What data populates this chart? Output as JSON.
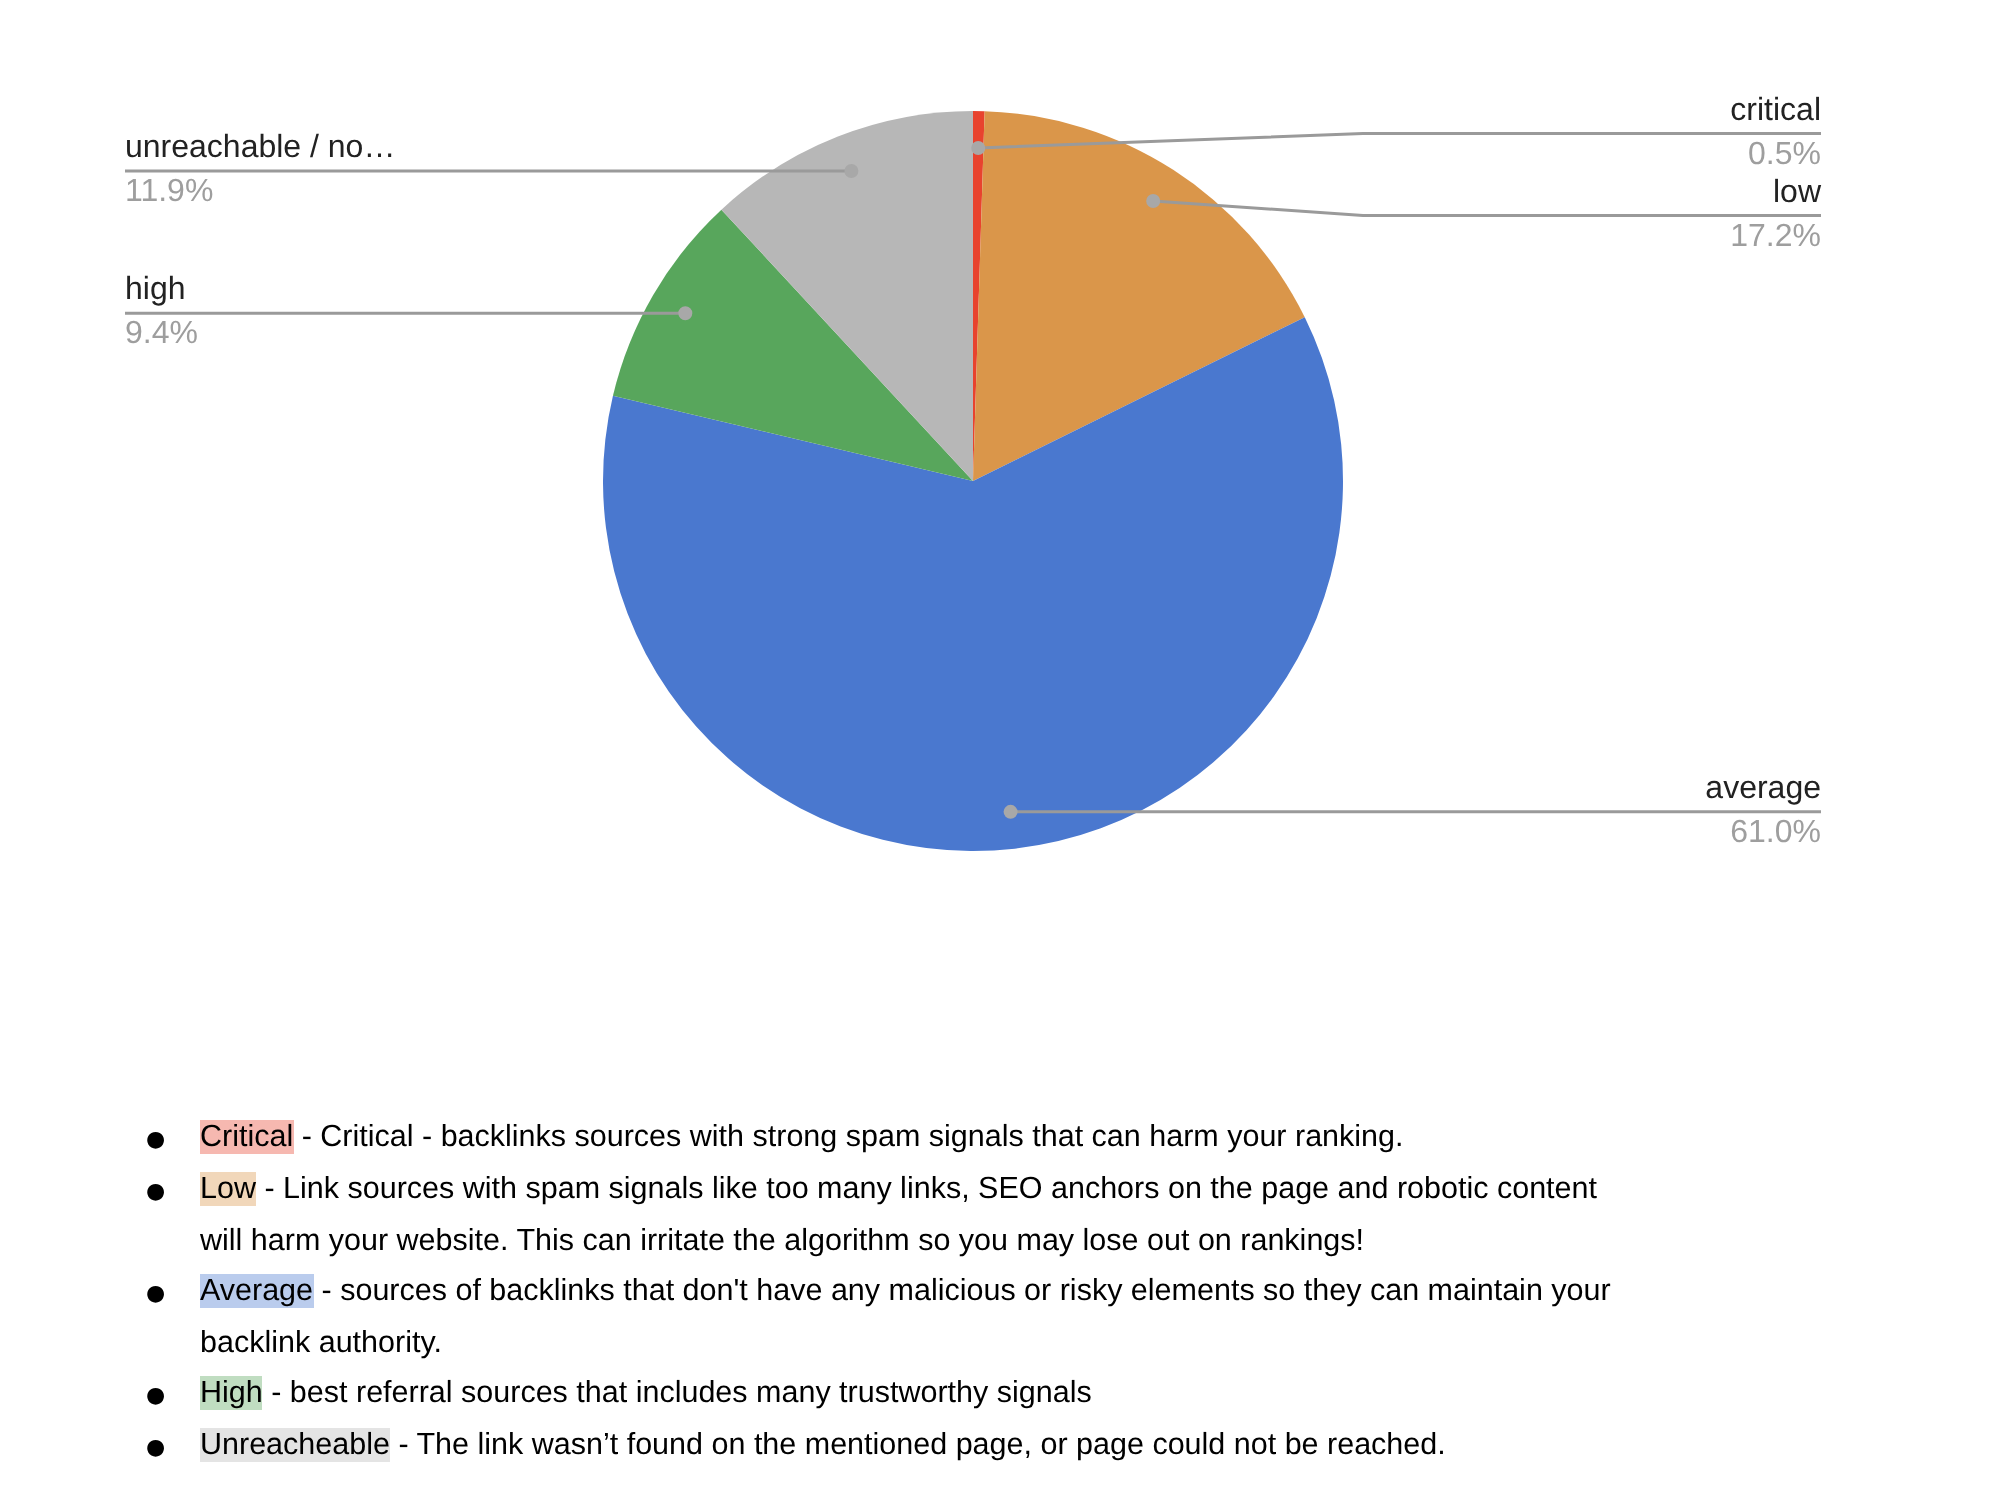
{
  "chart_data": {
    "type": "pie",
    "categories": [
      "critical",
      "low",
      "average",
      "high",
      "unreachable / no…"
    ],
    "values": [
      0.5,
      17.2,
      61.0,
      9.4,
      11.9
    ],
    "colors": [
      "#e8432e",
      "#da964a",
      "#4a78cf",
      "#58a65c",
      "#b7b7b7"
    ],
    "value_labels": [
      "0.5%",
      "17.2%",
      "61.0%",
      "9.4%",
      "11.9%"
    ],
    "annotations": [
      "● Critical - Critical - backlinks sources with strong spam signals that can harm your ranking.",
      "● Low - Link sources with spam signals like too many links, SEO anchors on the page and robotic content will harm your website. This can irritate the algorithm so you may lose out on rankings!",
      "● Average - sources of backlinks that don't have any malicious or risky elements so they can maintain your backlink authority.",
      "● High - best referral sources that includes many trustworthy signals",
      "● Unreacheable - The link wasn’t found on the mentioned page, or page could not be reached."
    ]
  }
}
